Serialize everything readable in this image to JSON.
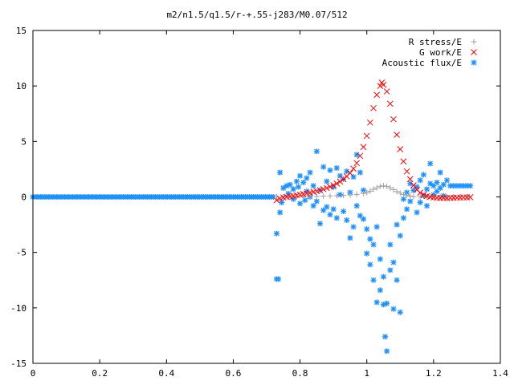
{
  "chart_data": {
    "type": "scatter",
    "title": "m2/n1.5/q1.5/r-+.55-j283/M0.07/512",
    "xlabel": "",
    "ylabel": "",
    "xlim": [
      0,
      1.4
    ],
    "ylim": [
      -15,
      15
    ],
    "xticks": [
      "0",
      "0.2",
      "0.4",
      "0.6",
      "0.8",
      "1",
      "1.2",
      "1.4"
    ],
    "yticks": [
      "15",
      "10",
      "5",
      "0",
      "-5",
      "-10",
      "-15"
    ],
    "legend_position": "top-right",
    "grid": false,
    "series": [
      {
        "name": "R stress/E",
        "marker": "plus",
        "color": "#a0a0a0",
        "points": [
          [
            0.73,
            0.0
          ],
          [
            0.75,
            0.0
          ],
          [
            0.77,
            0.01
          ],
          [
            0.79,
            0.02
          ],
          [
            0.81,
            0.03
          ],
          [
            0.83,
            0.04
          ],
          [
            0.85,
            0.05
          ],
          [
            0.87,
            0.07
          ],
          [
            0.89,
            0.09
          ],
          [
            0.91,
            0.11
          ],
          [
            0.93,
            0.14
          ],
          [
            0.95,
            0.17
          ],
          [
            0.97,
            0.22
          ],
          [
            0.99,
            0.3
          ],
          [
            1.0,
            0.4
          ],
          [
            1.01,
            0.52
          ],
          [
            1.02,
            0.68
          ],
          [
            1.03,
            0.82
          ],
          [
            1.04,
            0.95
          ],
          [
            1.05,
            1.0
          ],
          [
            1.06,
            0.95
          ],
          [
            1.07,
            0.82
          ],
          [
            1.08,
            0.65
          ],
          [
            1.09,
            0.48
          ],
          [
            1.1,
            0.34
          ],
          [
            1.11,
            0.22
          ],
          [
            1.12,
            0.13
          ],
          [
            1.13,
            0.07
          ],
          [
            1.14,
            0.03
          ],
          [
            1.16,
            0.0
          ],
          [
            1.18,
            -0.02
          ],
          [
            1.2,
            -0.02
          ],
          [
            1.22,
            -0.01
          ],
          [
            1.24,
            0.0
          ],
          [
            1.26,
            0.0
          ],
          [
            1.28,
            0.0
          ],
          [
            1.3,
            0.0
          ]
        ]
      },
      {
        "name": "G work/E",
        "marker": "cross",
        "color": "#ff0000",
        "points": [
          [
            0.73,
            -0.3
          ],
          [
            0.74,
            -0.15
          ],
          [
            0.75,
            -0.05
          ],
          [
            0.76,
            0.0
          ],
          [
            0.77,
            0.05
          ],
          [
            0.78,
            0.1
          ],
          [
            0.79,
            0.15
          ],
          [
            0.8,
            0.2
          ],
          [
            0.81,
            0.26
          ],
          [
            0.82,
            0.32
          ],
          [
            0.83,
            0.38
          ],
          [
            0.84,
            0.45
          ],
          [
            0.85,
            0.52
          ],
          [
            0.86,
            0.6
          ],
          [
            0.87,
            0.7
          ],
          [
            0.88,
            0.8
          ],
          [
            0.89,
            0.92
          ],
          [
            0.9,
            1.05
          ],
          [
            0.91,
            1.2
          ],
          [
            0.92,
            1.38
          ],
          [
            0.93,
            1.6
          ],
          [
            0.94,
            1.85
          ],
          [
            0.95,
            2.15
          ],
          [
            0.96,
            2.55
          ],
          [
            0.97,
            3.05
          ],
          [
            0.98,
            3.7
          ],
          [
            0.99,
            4.5
          ],
          [
            1.0,
            5.5
          ],
          [
            1.01,
            6.7
          ],
          [
            1.02,
            8.0
          ],
          [
            1.03,
            9.2
          ],
          [
            1.04,
            10.0
          ],
          [
            1.045,
            10.3
          ],
          [
            1.05,
            10.1
          ],
          [
            1.06,
            9.5
          ],
          [
            1.07,
            8.4
          ],
          [
            1.08,
            7.0
          ],
          [
            1.09,
            5.6
          ],
          [
            1.1,
            4.3
          ],
          [
            1.11,
            3.2
          ],
          [
            1.12,
            2.3
          ],
          [
            1.13,
            1.6
          ],
          [
            1.14,
            1.05
          ],
          [
            1.15,
            0.65
          ],
          [
            1.16,
            0.38
          ],
          [
            1.17,
            0.2
          ],
          [
            1.18,
            0.08
          ],
          [
            1.19,
            0.0
          ],
          [
            1.2,
            -0.05
          ],
          [
            1.21,
            -0.08
          ],
          [
            1.22,
            -0.1
          ],
          [
            1.23,
            -0.1
          ],
          [
            1.24,
            -0.1
          ],
          [
            1.25,
            -0.09
          ],
          [
            1.26,
            -0.08
          ],
          [
            1.27,
            -0.07
          ],
          [
            1.28,
            -0.06
          ],
          [
            1.29,
            -0.05
          ],
          [
            1.3,
            -0.04
          ],
          [
            1.31,
            -0.03
          ]
        ]
      },
      {
        "name": "Acoustic flux/E",
        "marker": "star",
        "color": "#1e90ff",
        "flat_segment": {
          "x_start": 0.0,
          "x_end": 0.72,
          "y": 0.0,
          "step": 0.006
        },
        "points": [
          [
            0.73,
            -3.3
          ],
          [
            0.73,
            -7.4
          ],
          [
            0.735,
            -7.4
          ],
          [
            0.74,
            2.2
          ],
          [
            0.74,
            -1.4
          ],
          [
            0.745,
            -0.5
          ],
          [
            0.75,
            0.8
          ],
          [
            0.76,
            1.0
          ],
          [
            0.765,
            0.3
          ],
          [
            0.77,
            1.1
          ],
          [
            0.78,
            0.7
          ],
          [
            0.78,
            -0.2
          ],
          [
            0.79,
            1.4
          ],
          [
            0.795,
            0.9
          ],
          [
            0.8,
            -0.6
          ],
          [
            0.8,
            1.9
          ],
          [
            0.81,
            1.3
          ],
          [
            0.815,
            -0.3
          ],
          [
            0.82,
            0.5
          ],
          [
            0.82,
            1.7
          ],
          [
            0.83,
            0.0
          ],
          [
            0.83,
            2.2
          ],
          [
            0.84,
            -0.8
          ],
          [
            0.84,
            1.0
          ],
          [
            0.85,
            4.1
          ],
          [
            0.85,
            -0.4
          ],
          [
            0.86,
            -2.4
          ],
          [
            0.86,
            0.6
          ],
          [
            0.87,
            -1.2
          ],
          [
            0.87,
            2.7
          ],
          [
            0.88,
            1.4
          ],
          [
            0.88,
            -0.9
          ],
          [
            0.89,
            -1.6
          ],
          [
            0.89,
            2.4
          ],
          [
            0.9,
            -1.1
          ],
          [
            0.9,
            0.9
          ],
          [
            0.91,
            2.6
          ],
          [
            0.91,
            -1.9
          ],
          [
            0.92,
            1.9
          ],
          [
            0.92,
            0.2
          ],
          [
            0.93,
            -1.3
          ],
          [
            0.93,
            1.6
          ],
          [
            0.94,
            -2.1
          ],
          [
            0.94,
            2.3
          ],
          [
            0.95,
            -3.7
          ],
          [
            0.95,
            0.4
          ],
          [
            0.96,
            -2.7
          ],
          [
            0.96,
            1.8
          ],
          [
            0.97,
            3.8
          ],
          [
            0.97,
            -0.8
          ],
          [
            0.98,
            2.2
          ],
          [
            0.98,
            -1.7
          ],
          [
            0.99,
            0.6
          ],
          [
            0.99,
            -2.0
          ],
          [
            1.0,
            -2.9
          ],
          [
            1.0,
            -5.1
          ],
          [
            1.01,
            -6.1
          ],
          [
            1.01,
            -3.8
          ],
          [
            1.02,
            -4.3
          ],
          [
            1.02,
            -7.5
          ],
          [
            1.03,
            -2.7
          ],
          [
            1.03,
            -9.5
          ],
          [
            1.04,
            -8.4
          ],
          [
            1.04,
            -5.6
          ],
          [
            1.05,
            -9.7
          ],
          [
            1.05,
            -7.2
          ],
          [
            1.055,
            -12.6
          ],
          [
            1.06,
            -13.9
          ],
          [
            1.06,
            -9.6
          ],
          [
            1.07,
            -6.6
          ],
          [
            1.07,
            -4.3
          ],
          [
            1.08,
            -10.1
          ],
          [
            1.08,
            -5.9
          ],
          [
            1.09,
            -7.5
          ],
          [
            1.09,
            -2.5
          ],
          [
            1.1,
            -10.4
          ],
          [
            1.1,
            -3.5
          ],
          [
            1.11,
            -1.9
          ],
          [
            1.11,
            -0.2
          ],
          [
            1.12,
            0.4
          ],
          [
            1.12,
            -1.1
          ],
          [
            1.13,
            1.2
          ],
          [
            1.13,
            -0.4
          ],
          [
            1.14,
            0.6
          ],
          [
            1.15,
            -1.4
          ],
          [
            1.15,
            0.9
          ],
          [
            1.16,
            1.5
          ],
          [
            1.16,
            -0.5
          ],
          [
            1.17,
            0.1
          ],
          [
            1.17,
            2.0
          ],
          [
            1.18,
            -0.8
          ],
          [
            1.18,
            0.7
          ],
          [
            1.19,
            3.0
          ],
          [
            1.19,
            1.2
          ],
          [
            1.2,
            1.0
          ],
          [
            1.2,
            0.2
          ],
          [
            1.21,
            1.3
          ],
          [
            1.21,
            0.5
          ],
          [
            1.22,
            2.2
          ],
          [
            1.22,
            0.8
          ],
          [
            1.23,
            1.1
          ],
          [
            1.23,
            0.1
          ],
          [
            1.24,
            1.5
          ],
          [
            1.25,
            1.0
          ],
          [
            1.26,
            1.0
          ],
          [
            1.27,
            1.0
          ],
          [
            1.28,
            1.0
          ],
          [
            1.29,
            1.0
          ],
          [
            1.3,
            1.0
          ],
          [
            1.31,
            1.0
          ]
        ]
      }
    ]
  }
}
